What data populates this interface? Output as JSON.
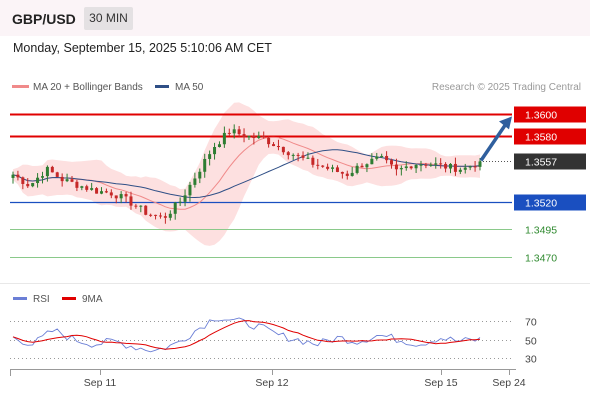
{
  "header": {
    "symbol": "GBP/USD",
    "timeframe": "30 MIN",
    "datetime": "Monday, September 15, 2025 5:10:06 AM CET"
  },
  "legend": {
    "ma20_label": "MA 20 + Bollinger Bands",
    "ma50_label": "MA 50",
    "ma20_color": "#f08a8a",
    "ma50_color": "#2f4f86",
    "copyright": "Research © 2025 Trading Central"
  },
  "rsi_legend": {
    "rsi_label": "RSI",
    "ma_label": "9MA",
    "rsi_color": "#6b7fd6",
    "ma_color": "#e00000"
  },
  "colors": {
    "resistance": "#e00000",
    "support": "#1a4fc0",
    "target": "#2f8a2f",
    "current": "#333333",
    "arrow": "#2f5f9e",
    "candle_up": "#2e7d32",
    "candle_down": "#c62828",
    "band_fill": "#fde0e0"
  },
  "chart_data": {
    "type": "candlestick",
    "y_axis_range": [
      1.3445,
      1.3615
    ],
    "current_price": 1.3557,
    "levels": [
      {
        "label": "1.3600",
        "value": 1.36,
        "kind": "resistance"
      },
      {
        "label": "1.3580",
        "value": 1.358,
        "kind": "resistance"
      },
      {
        "label": "1.3557",
        "value": 1.3557,
        "kind": "current"
      },
      {
        "label": "1.3520",
        "value": 1.352,
        "kind": "support"
      },
      {
        "label": "1.3495",
        "value": 1.3495,
        "kind": "target"
      },
      {
        "label": "1.3470",
        "value": 1.347,
        "kind": "target"
      }
    ],
    "x_tick_labels": [
      "Sep 11",
      "Sep 12",
      "Sep 15",
      "Sep 24"
    ],
    "projection": {
      "from": 1.3557,
      "to": 1.36
    },
    "price_waypoints": [
      1.3545,
      1.3535,
      1.355,
      1.354,
      1.3535,
      1.353,
      1.3528,
      1.352,
      1.351,
      1.3505,
      1.352,
      1.3545,
      1.357,
      1.3585,
      1.358,
      1.3578,
      1.357,
      1.3562,
      1.3555,
      1.355,
      1.3545,
      1.3555,
      1.356,
      1.3548,
      1.3555,
      1.3555,
      1.3552,
      1.355,
      1.3557
    ],
    "rsi": {
      "levels": [
        70,
        50,
        30
      ],
      "range": [
        20,
        80
      ],
      "waypoints": [
        52,
        45,
        60,
        50,
        45,
        48,
        42,
        38,
        45,
        60,
        75,
        70,
        65,
        55,
        50,
        45,
        52,
        48,
        55,
        50,
        45,
        52,
        48,
        50
      ]
    }
  }
}
